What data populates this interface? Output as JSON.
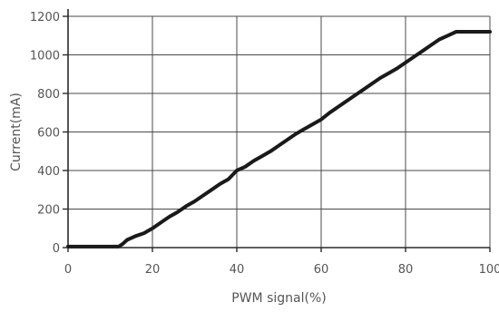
{
  "chart_data": {
    "type": "line",
    "title": "",
    "xlabel": "PWM signal(%)",
    "ylabel": "Current(mA)",
    "xlim": [
      0,
      100
    ],
    "ylim": [
      0,
      1200
    ],
    "xticks": [
      0,
      20,
      40,
      60,
      80,
      100
    ],
    "xtick_labels": [
      "0",
      "20",
      "40",
      "60",
      "80",
      "100"
    ],
    "yticks": [
      0,
      200,
      400,
      600,
      800,
      1000,
      1200
    ],
    "ytick_labels": [
      "0",
      "200",
      "400",
      "600",
      "800",
      "1000",
      "1200"
    ],
    "grid": true,
    "legend": "none",
    "series": [
      {
        "color": "#1a1a1a",
        "x": [
          0,
          5,
          10,
          12,
          13,
          14,
          16,
          18,
          20,
          22,
          24,
          26,
          28,
          30,
          32,
          34,
          36,
          38,
          40,
          42,
          44,
          46,
          48,
          50,
          52,
          54,
          56,
          58,
          60,
          62,
          64,
          66,
          68,
          70,
          72,
          74,
          76,
          78,
          80,
          82,
          84,
          86,
          88,
          90,
          92,
          95,
          100
        ],
        "y": [
          5,
          5,
          5,
          5,
          20,
          40,
          60,
          75,
          100,
          130,
          160,
          185,
          215,
          240,
          270,
          300,
          330,
          355,
          400,
          420,
          450,
          475,
          500,
          530,
          560,
          590,
          615,
          640,
          665,
          700,
          730,
          760,
          790,
          820,
          850,
          880,
          905,
          930,
          960,
          990,
          1020,
          1050,
          1080,
          1100,
          1120,
          1120,
          1120
        ]
      }
    ]
  }
}
